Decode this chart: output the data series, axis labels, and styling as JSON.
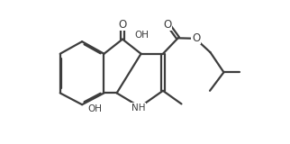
{
  "bg_color": "#ffffff",
  "line_color": "#3d3d3d",
  "line_width": 1.6,
  "figsize": [
    3.22,
    1.6
  ],
  "dpi": 100,
  "xlim": [
    0,
    3.22
  ],
  "ylim": [
    0,
    1.6
  ]
}
